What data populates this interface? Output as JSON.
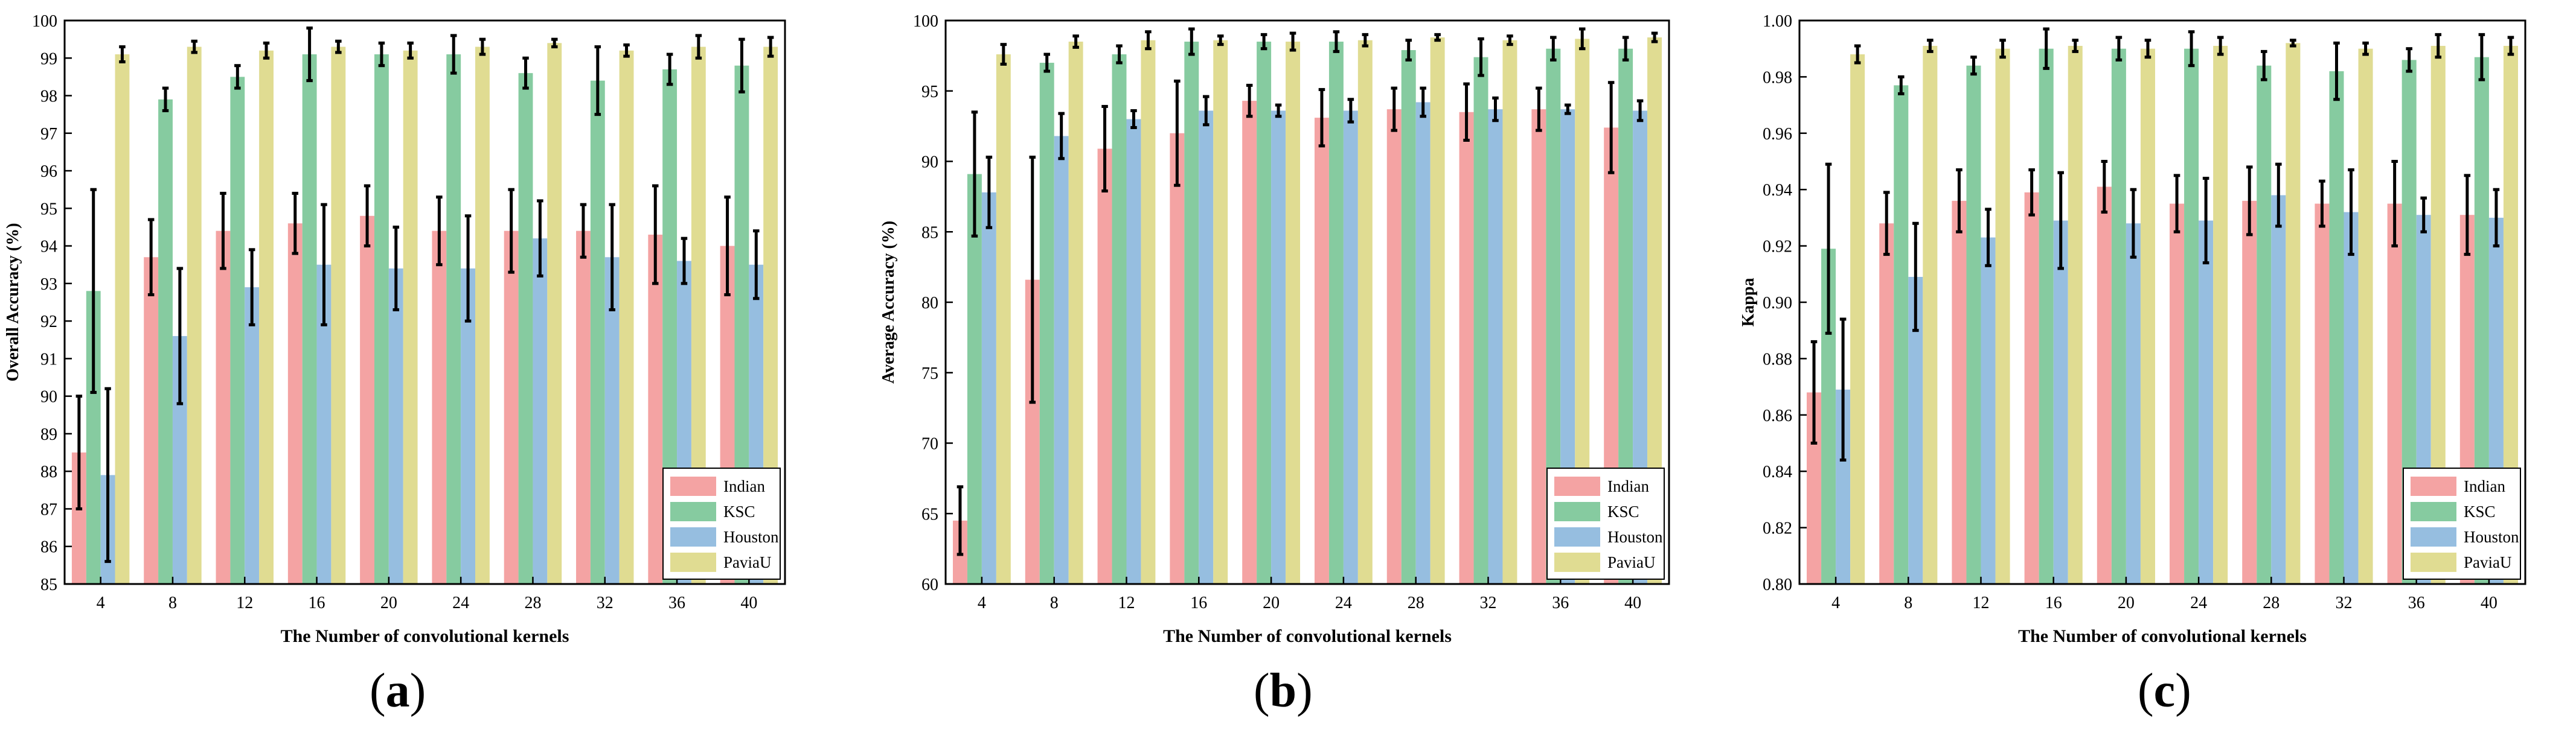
{
  "colors": {
    "Indian": "#F4A3A3",
    "KSC": "#86CBA0",
    "Houston": "#96BEE0",
    "PaviaU": "#E0DC92"
  },
  "chart_data": [
    {
      "type": "bar",
      "panel": "(a)",
      "panel_open": "(",
      "panel_letter": "a",
      "panel_close": ")",
      "xlabel": "The Number of convolutional kernels",
      "ylabel": "Overall Accuracy (%)",
      "ylim": [
        85,
        100
      ],
      "yticks": [
        85,
        86,
        87,
        88,
        89,
        90,
        91,
        92,
        93,
        94,
        95,
        96,
        97,
        98,
        99,
        100
      ],
      "ytick_labels": [
        "85",
        "86",
        "87",
        "88",
        "89",
        "90",
        "91",
        "92",
        "93",
        "94",
        "95",
        "96",
        "97",
        "98",
        "99",
        "100"
      ],
      "categories": [
        "4",
        "8",
        "12",
        "16",
        "20",
        "24",
        "28",
        "32",
        "36",
        "40"
      ],
      "legend_position": "bottom-right",
      "series": [
        {
          "name": "Indian",
          "values": [
            88.5,
            93.7,
            94.4,
            94.6,
            94.8,
            94.4,
            94.4,
            94.4,
            94.3,
            94.0
          ],
          "errors": [
            1.5,
            1.0,
            1.0,
            0.8,
            0.8,
            0.9,
            1.1,
            0.7,
            1.3,
            1.3
          ]
        },
        {
          "name": "KSC",
          "values": [
            92.8,
            97.9,
            98.5,
            99.1,
            99.1,
            99.1,
            98.6,
            98.4,
            98.7,
            98.8
          ],
          "errors": [
            2.7,
            0.3,
            0.3,
            0.7,
            0.3,
            0.5,
            0.4,
            0.9,
            0.4,
            0.7
          ]
        },
        {
          "name": "Houston",
          "values": [
            87.9,
            91.6,
            92.9,
            93.5,
            93.4,
            93.4,
            94.2,
            93.7,
            93.6,
            93.5
          ],
          "errors": [
            2.3,
            1.8,
            1.0,
            1.6,
            1.1,
            1.4,
            1.0,
            1.4,
            0.6,
            0.9
          ]
        },
        {
          "name": "PaviaU",
          "values": [
            99.1,
            99.3,
            99.2,
            99.3,
            99.2,
            99.3,
            99.4,
            99.2,
            99.3,
            99.3
          ],
          "errors": [
            0.2,
            0.15,
            0.2,
            0.15,
            0.2,
            0.2,
            0.1,
            0.15,
            0.3,
            0.25
          ]
        }
      ]
    },
    {
      "type": "bar",
      "panel": "(b)",
      "panel_open": "(",
      "panel_letter": "b",
      "panel_close": ")",
      "xlabel": "The Number of convolutional kernels",
      "ylabel": "Average Accuracy (%)",
      "ylim": [
        60,
        100
      ],
      "yticks": [
        60,
        65,
        70,
        75,
        80,
        85,
        90,
        95,
        100
      ],
      "ytick_labels": [
        "60",
        "65",
        "70",
        "75",
        "80",
        "85",
        "90",
        "95",
        "100"
      ],
      "categories": [
        "4",
        "8",
        "12",
        "16",
        "20",
        "24",
        "28",
        "32",
        "36",
        "40"
      ],
      "legend_position": "bottom-right",
      "series": [
        {
          "name": "Indian",
          "values": [
            64.5,
            81.6,
            90.9,
            92.0,
            94.3,
            93.1,
            93.7,
            93.5,
            93.7,
            92.4
          ],
          "errors": [
            2.4,
            8.7,
            3.0,
            3.7,
            1.1,
            2.0,
            1.5,
            2.0,
            1.5,
            3.2
          ]
        },
        {
          "name": "KSC",
          "values": [
            89.1,
            97.0,
            97.6,
            98.5,
            98.5,
            98.5,
            97.9,
            97.4,
            98.0,
            98.0
          ],
          "errors": [
            4.4,
            0.6,
            0.6,
            0.9,
            0.5,
            0.7,
            0.7,
            1.3,
            0.8,
            0.8
          ]
        },
        {
          "name": "Houston",
          "values": [
            87.8,
            91.8,
            93.0,
            93.6,
            93.6,
            93.6,
            94.2,
            93.7,
            93.7,
            93.6
          ],
          "errors": [
            2.5,
            1.6,
            0.6,
            1.0,
            0.4,
            0.8,
            1.0,
            0.8,
            0.3,
            0.7
          ]
        },
        {
          "name": "PaviaU",
          "values": [
            97.6,
            98.5,
            98.6,
            98.6,
            98.5,
            98.6,
            98.8,
            98.6,
            98.7,
            98.8
          ],
          "errors": [
            0.7,
            0.4,
            0.6,
            0.3,
            0.6,
            0.4,
            0.2,
            0.3,
            0.7,
            0.3
          ]
        }
      ]
    },
    {
      "type": "bar",
      "panel": "(c)",
      "panel_open": "(",
      "panel_letter": "c",
      "panel_close": ")",
      "xlabel": "The Number of convolutional kernels",
      "ylabel": "Kappa",
      "ylim": [
        0.8,
        1.0
      ],
      "yticks": [
        0.8,
        0.82,
        0.84,
        0.86,
        0.88,
        0.9,
        0.92,
        0.94,
        0.96,
        0.98,
        1.0
      ],
      "ytick_labels": [
        "0.80",
        "0.82",
        "0.84",
        "0.86",
        "0.88",
        "0.90",
        "0.92",
        "0.94",
        "0.96",
        "0.98",
        "1.00"
      ],
      "categories": [
        "4",
        "8",
        "12",
        "16",
        "20",
        "24",
        "28",
        "32",
        "36",
        "40"
      ],
      "legend_position": "bottom-right",
      "series": [
        {
          "name": "Indian",
          "values": [
            0.868,
            0.928,
            0.936,
            0.939,
            0.941,
            0.935,
            0.936,
            0.935,
            0.935,
            0.931
          ],
          "errors": [
            0.018,
            0.011,
            0.011,
            0.008,
            0.009,
            0.01,
            0.012,
            0.008,
            0.015,
            0.014
          ]
        },
        {
          "name": "KSC",
          "values": [
            0.919,
            0.977,
            0.984,
            0.99,
            0.99,
            0.99,
            0.984,
            0.982,
            0.986,
            0.987
          ],
          "errors": [
            0.03,
            0.003,
            0.003,
            0.007,
            0.004,
            0.006,
            0.005,
            0.01,
            0.004,
            0.008
          ]
        },
        {
          "name": "Houston",
          "values": [
            0.869,
            0.909,
            0.923,
            0.929,
            0.928,
            0.929,
            0.938,
            0.932,
            0.931,
            0.93
          ],
          "errors": [
            0.025,
            0.019,
            0.01,
            0.017,
            0.012,
            0.015,
            0.011,
            0.015,
            0.006,
            0.01
          ]
        },
        {
          "name": "PaviaU",
          "values": [
            0.988,
            0.991,
            0.99,
            0.991,
            0.99,
            0.991,
            0.992,
            0.99,
            0.991,
            0.991
          ],
          "errors": [
            0.003,
            0.002,
            0.003,
            0.002,
            0.003,
            0.003,
            0.001,
            0.002,
            0.004,
            0.003
          ]
        }
      ]
    }
  ]
}
